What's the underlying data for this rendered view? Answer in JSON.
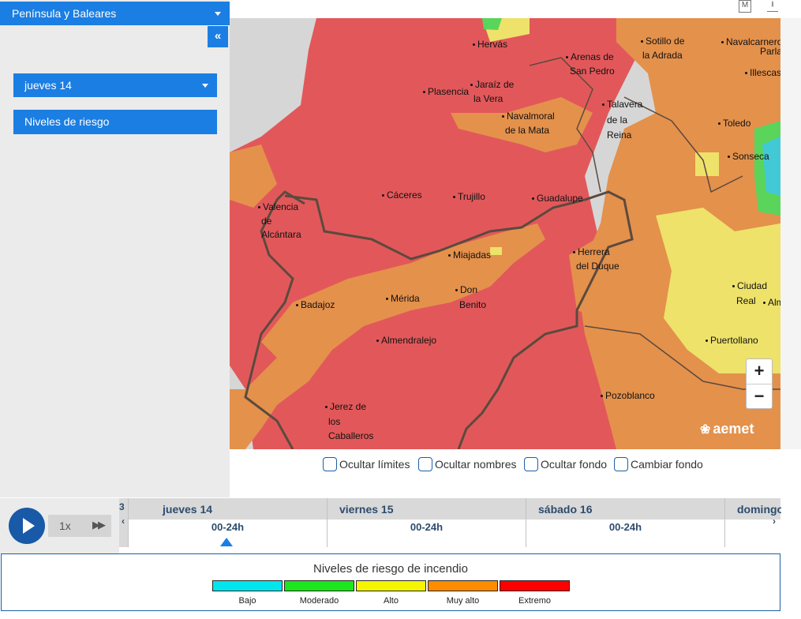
{
  "sidebar": {
    "region_select": "Península y Baleares",
    "collapse_label": "«",
    "day_select": "jueves 14",
    "layer_button": "Niveles de riesgo"
  },
  "toolbar_icons": {
    "map_icon": "M",
    "download_icon": "⭳"
  },
  "map": {
    "cities": [
      {
        "name": "Hervás"
      },
      {
        "name": "Arenas de"
      },
      {
        "name": "San Pedro"
      },
      {
        "name": "Sotillo de"
      },
      {
        "name": "la Adrada"
      },
      {
        "name": "Navalcarnero"
      },
      {
        "name": "Parla"
      },
      {
        "name": "Illescas"
      },
      {
        "name": "Plasencia"
      },
      {
        "name": "Jaraíz de"
      },
      {
        "name": "la Vera"
      },
      {
        "name": "Talavera"
      },
      {
        "name": "de la"
      },
      {
        "name": "Reina"
      },
      {
        "name": "Navalmoral"
      },
      {
        "name": "de la Mata"
      },
      {
        "name": "Toledo"
      },
      {
        "name": "Sonseca"
      },
      {
        "name": "Cáceres"
      },
      {
        "name": "Trujillo"
      },
      {
        "name": "Guadalupe"
      },
      {
        "name": "Valencia"
      },
      {
        "name": "de"
      },
      {
        "name": "Alcántara"
      },
      {
        "name": "Miajadas"
      },
      {
        "name": "Herrera"
      },
      {
        "name": "del Duque"
      },
      {
        "name": "Badajoz"
      },
      {
        "name": "Mérida"
      },
      {
        "name": "Don"
      },
      {
        "name": "Benito"
      },
      {
        "name": "Ciudad"
      },
      {
        "name": "Real"
      },
      {
        "name": "Alm"
      },
      {
        "name": "Almendralejo"
      },
      {
        "name": "Puertollano"
      },
      {
        "name": "Pozoblanco"
      },
      {
        "name": "Jerez de"
      },
      {
        "name": "los"
      },
      {
        "name": "Caballeros"
      }
    ],
    "zoom_in": "+",
    "zoom_out": "−",
    "logo": "aemet"
  },
  "options": {
    "hide_limits": "Ocultar límites",
    "hide_names": "Ocultar nombres",
    "hide_background": "Ocultar fondo",
    "change_background": "Cambiar fondo"
  },
  "player": {
    "speed": "1x",
    "fast_forward": "▶▶"
  },
  "timeline": {
    "prev_fragment": "3",
    "days": [
      {
        "name": "jueves 14",
        "hour": "00-24h"
      },
      {
        "name": "viernes 15",
        "hour": "00-24h"
      },
      {
        "name": "sábado 16",
        "hour": "00-24h"
      },
      {
        "name": "domingo",
        "hour": ""
      }
    ],
    "left_arrow": "‹",
    "right_arrow": "›"
  },
  "legend": {
    "title": "Niveles de riesgo de incendio",
    "items": [
      {
        "label": "Bajo",
        "color": "#00e5ee"
      },
      {
        "label": "Moderado",
        "color": "#1ee61e"
      },
      {
        "label": "Alto",
        "color": "#f5f500"
      },
      {
        "label": "Muy alto",
        "color": "#ff8c00"
      },
      {
        "label": "Extremo",
        "color": "#ff0000"
      }
    ]
  }
}
